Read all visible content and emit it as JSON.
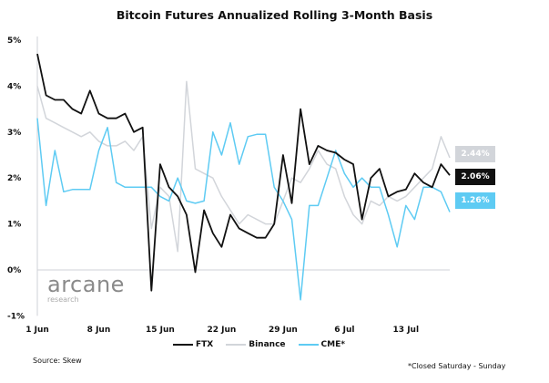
{
  "chart_data": {
    "type": "line",
    "title": "Bitcoin Futures Annualized Rolling 3-Month Basis",
    "x": [
      "1 Jun",
      "2 Jun",
      "3 Jun",
      "4 Jun",
      "5 Jun",
      "6 Jun",
      "7 Jun",
      "8 Jun",
      "9 Jun",
      "10 Jun",
      "11 Jun",
      "12 Jun",
      "13 Jun",
      "14 Jun",
      "15 Jun",
      "16 Jun",
      "17 Jun",
      "18 Jun",
      "19 Jun",
      "20 Jun",
      "21 Jun",
      "22 Jun",
      "23 Jun",
      "24 Jun",
      "25 Jun",
      "26 Jun",
      "27 Jun",
      "28 Jun",
      "29 Jun",
      "30 Jun",
      "1 Jul",
      "2 Jul",
      "3 Jul",
      "4 Jul",
      "5 Jul",
      "6 Jul",
      "7 Jul",
      "8 Jul",
      "9 Jul",
      "10 Jul",
      "11 Jul",
      "12 Jul",
      "13 Jul",
      "14 Jul",
      "15 Jul",
      "16 Jul",
      "17 Jul",
      "18 Jul"
    ],
    "x_ticks": [
      "1 Jun",
      "8 Jun",
      "15 Jun",
      "22 Jun",
      "29 Jun",
      "6 Jul",
      "13 Jul"
    ],
    "y_ticks": [
      "5%",
      "4%",
      "3%",
      "2%",
      "1%",
      "0%",
      "-1%"
    ],
    "ylim": [
      -1,
      5
    ],
    "ylabel": "",
    "xlabel": "",
    "grid": false,
    "legend_position": "bottom",
    "series": [
      {
        "name": "FTX",
        "color": "#111111",
        "end_label": "2.06%",
        "values": [
          4.7,
          3.8,
          3.7,
          3.7,
          3.5,
          3.4,
          3.9,
          3.4,
          3.3,
          3.3,
          3.4,
          3.0,
          3.1,
          -0.45,
          2.3,
          1.8,
          1.6,
          1.2,
          -0.05,
          1.3,
          0.8,
          0.5,
          1.2,
          0.9,
          0.8,
          0.7,
          0.7,
          1.0,
          2.5,
          1.45,
          3.5,
          2.3,
          2.7,
          2.6,
          2.55,
          2.4,
          2.3,
          1.1,
          2.0,
          2.2,
          1.6,
          1.7,
          1.75,
          2.1,
          1.9,
          1.8,
          2.3,
          2.06
        ]
      },
      {
        "name": "Binance",
        "color": "#d2d5da",
        "end_label": "2.44%",
        "values": [
          4.0,
          3.3,
          3.2,
          3.1,
          3.0,
          2.9,
          3.0,
          2.8,
          2.7,
          2.7,
          2.8,
          2.6,
          2.9,
          0.9,
          1.8,
          1.6,
          0.4,
          4.1,
          2.2,
          2.1,
          2.0,
          1.6,
          1.3,
          1.0,
          1.2,
          1.1,
          1.0,
          1.0,
          1.5,
          2.0,
          1.9,
          2.2,
          2.6,
          2.3,
          2.2,
          1.6,
          1.2,
          1.0,
          1.5,
          1.4,
          1.6,
          1.5,
          1.6,
          1.8,
          2.0,
          2.2,
          2.9,
          2.44
        ]
      },
      {
        "name": "CME*",
        "color": "#5ecbf3",
        "end_label": "1.26%",
        "values": [
          3.3,
          1.4,
          2.6,
          1.7,
          1.75,
          1.75,
          1.75,
          2.6,
          3.1,
          1.9,
          1.8,
          1.8,
          1.8,
          1.8,
          1.6,
          1.5,
          2.0,
          1.5,
          1.45,
          1.5,
          3.0,
          2.5,
          3.2,
          2.3,
          2.9,
          2.95,
          2.95,
          1.8,
          1.5,
          1.1,
          -0.65,
          1.4,
          1.4,
          2.0,
          2.6,
          2.1,
          1.8,
          2.0,
          1.8,
          1.8,
          1.2,
          0.5,
          1.4,
          1.1,
          1.8,
          1.8,
          1.7,
          1.26
        ]
      }
    ]
  },
  "logo": {
    "name": "arcane",
    "sub": "research"
  },
  "source": "Source: Skew",
  "footnote": "*Closed Saturday - Sunday"
}
